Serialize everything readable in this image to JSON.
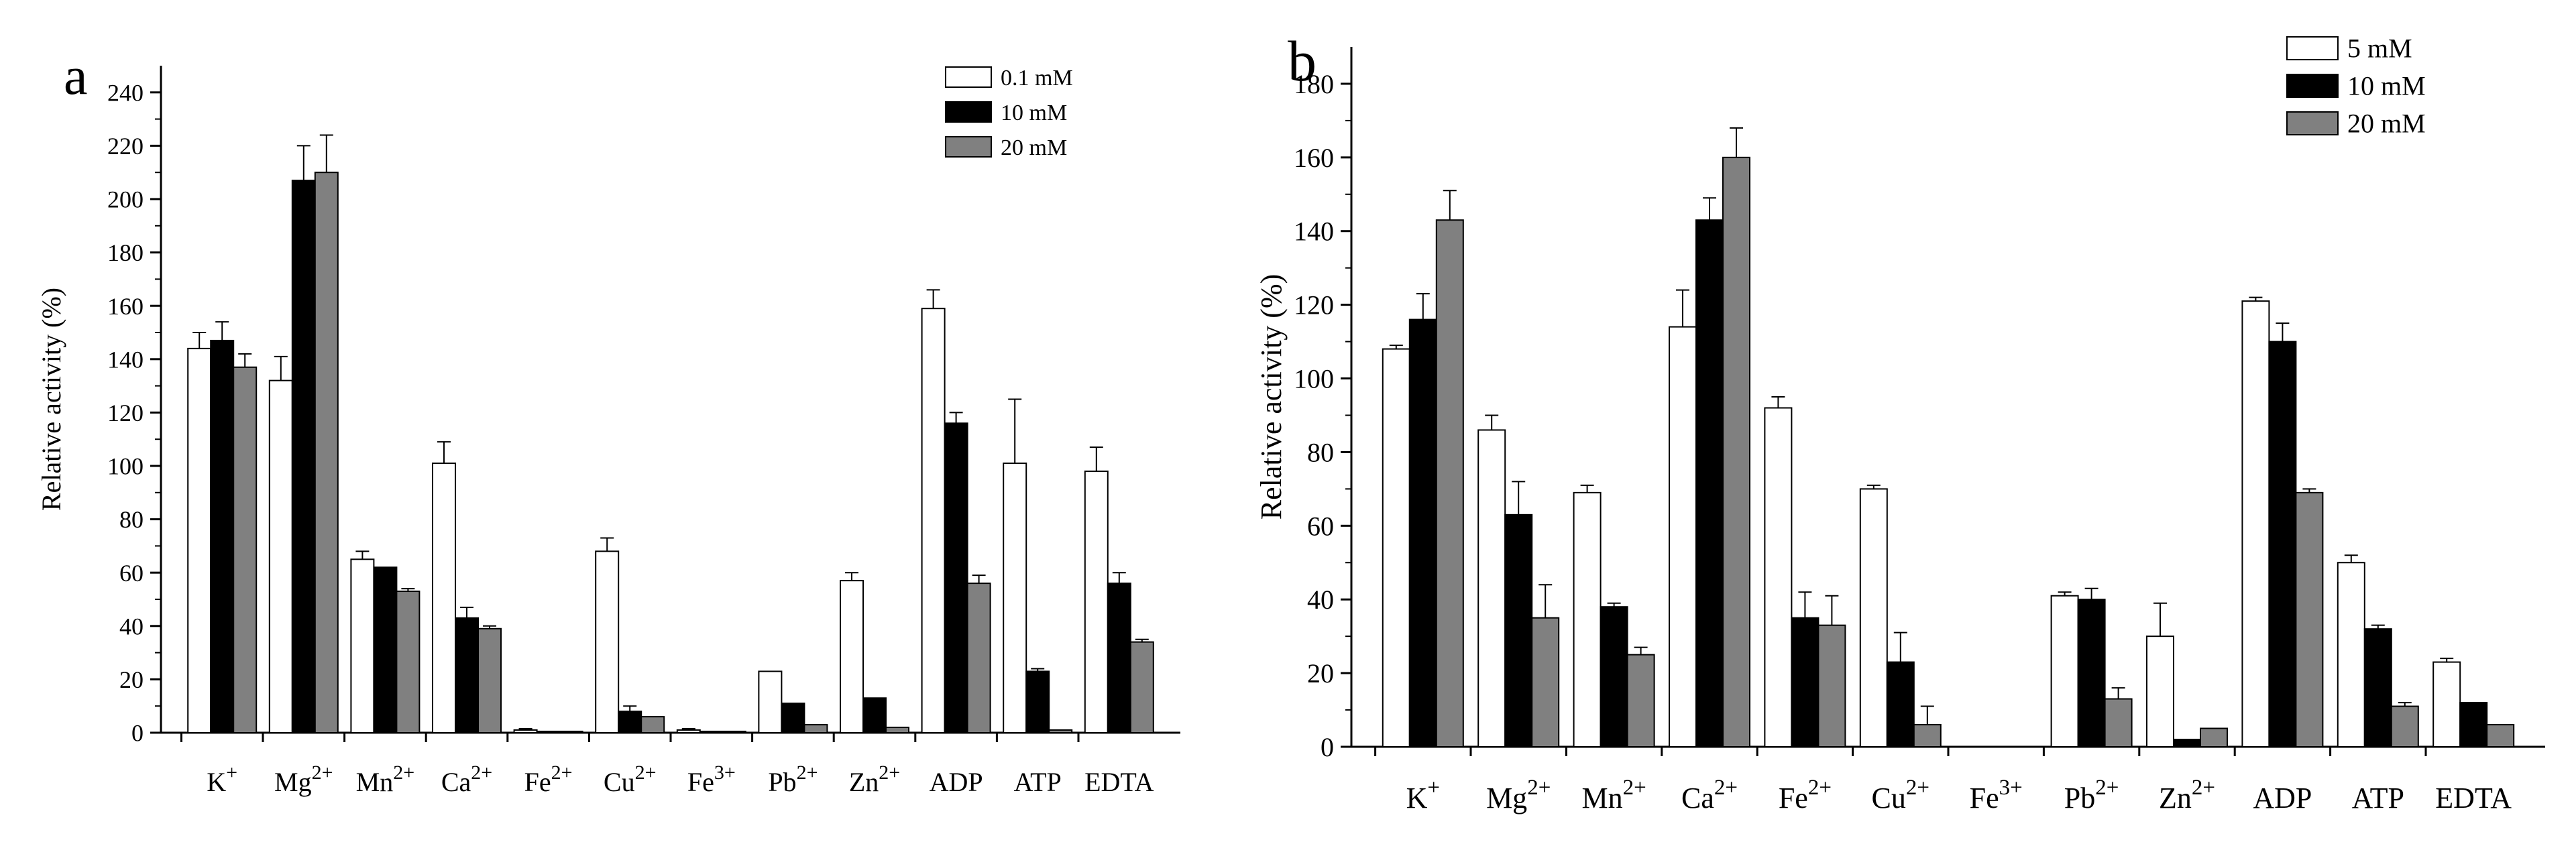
{
  "chart_data": [
    {
      "panel_label": "a",
      "type": "bar",
      "categories": [
        {
          "base": "K",
          "sup": "+"
        },
        {
          "base": "Mg",
          "sup": "2+"
        },
        {
          "base": "Mn",
          "sup": "2+"
        },
        {
          "base": "Ca",
          "sup": "2+"
        },
        {
          "base": "Fe",
          "sup": "2+"
        },
        {
          "base": "Cu",
          "sup": "2+"
        },
        {
          "base": "Fe",
          "sup": "3+"
        },
        {
          "base": "Pb",
          "sup": "2+"
        },
        {
          "base": "Zn",
          "sup": "2+"
        },
        {
          "base": "ADP",
          "sup": ""
        },
        {
          "base": "ATP",
          "sup": ""
        },
        {
          "base": "EDTA",
          "sup": ""
        }
      ],
      "ylabel": "Relative activity (%)",
      "ylim": [
        0,
        250
      ],
      "yticks": [
        0,
        20,
        40,
        60,
        80,
        100,
        120,
        140,
        160,
        180,
        200,
        220,
        240
      ],
      "legend_position": "top-right",
      "series": [
        {
          "name": "0.1 mM",
          "color": "#ffffff",
          "values": [
            144,
            132,
            65,
            101,
            1,
            68,
            1,
            23,
            57,
            159,
            101,
            98
          ],
          "errors": [
            6,
            9,
            3,
            8,
            0.5,
            5,
            0.5,
            0,
            3,
            7,
            24,
            9
          ]
        },
        {
          "name": "10 mM",
          "color": "#000000",
          "values": [
            147,
            207,
            62,
            43,
            0.5,
            8,
            0.5,
            11,
            13,
            116,
            23,
            56
          ],
          "errors": [
            7,
            13,
            0,
            4,
            0,
            2,
            0,
            0,
            0,
            4,
            1,
            4
          ]
        },
        {
          "name": "20 mM",
          "color": "#808080",
          "values": [
            137,
            210,
            53,
            39,
            0.5,
            6,
            0.5,
            3,
            2,
            56,
            1,
            34
          ],
          "errors": [
            5,
            14,
            1,
            1,
            0,
            0,
            0,
            0,
            0,
            3,
            0,
            1
          ]
        }
      ]
    },
    {
      "panel_label": "b",
      "type": "bar",
      "categories": [
        {
          "base": "K",
          "sup": "+"
        },
        {
          "base": "Mg",
          "sup": "2+"
        },
        {
          "base": "Mn",
          "sup": "2+"
        },
        {
          "base": "Ca",
          "sup": "2+"
        },
        {
          "base": "Fe",
          "sup": "2+"
        },
        {
          "base": "Cu",
          "sup": "2+"
        },
        {
          "base": "Fe",
          "sup": "3+"
        },
        {
          "base": "Pb",
          "sup": "2+"
        },
        {
          "base": "Zn",
          "sup": "2+"
        },
        {
          "base": "ADP",
          "sup": ""
        },
        {
          "base": "ATP",
          "sup": ""
        },
        {
          "base": "EDTA",
          "sup": ""
        }
      ],
      "ylabel": "Relative activity (%)",
      "ylim": [
        0,
        190
      ],
      "yticks": [
        0,
        20,
        40,
        60,
        80,
        100,
        120,
        140,
        160,
        180
      ],
      "legend_position": "top-right",
      "series": [
        {
          "name": "5 mM",
          "color": "#ffffff",
          "values": [
            108,
            86,
            69,
            114,
            92,
            70,
            null,
            41,
            30,
            121,
            50,
            23
          ],
          "errors": [
            1,
            4,
            2,
            10,
            3,
            1,
            0,
            1,
            9,
            1,
            2,
            1
          ]
        },
        {
          "name": "10 mM",
          "color": "#000000",
          "values": [
            116,
            63,
            38,
            143,
            35,
            23,
            null,
            40,
            2,
            110,
            32,
            12
          ],
          "errors": [
            7,
            9,
            1,
            6,
            7,
            8,
            0,
            3,
            0,
            5,
            1,
            0
          ]
        },
        {
          "name": "20 mM",
          "color": "#808080",
          "values": [
            143,
            35,
            25,
            160,
            33,
            6,
            null,
            13,
            5,
            69,
            11,
            6
          ],
          "errors": [
            8,
            9,
            2,
            8,
            8,
            5,
            0,
            3,
            0,
            1,
            1,
            0
          ]
        }
      ]
    }
  ]
}
